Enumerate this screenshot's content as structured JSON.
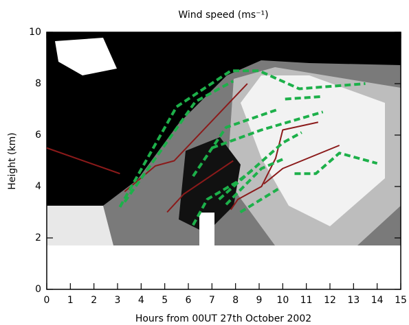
{
  "chart_data": {
    "type": "line",
    "title": "Wind speed (ms⁻¹)",
    "xlabel": "Hours from 00UT 27th October 2002",
    "ylabel": "Height (km)",
    "xlim": [
      0,
      15
    ],
    "xticks": [
      0,
      1,
      2,
      3,
      4,
      5,
      6,
      7,
      8,
      9,
      10,
      11,
      12,
      13,
      14,
      15
    ],
    "ylim": [
      0,
      10
    ],
    "yticks": [
      0,
      2,
      4,
      6,
      8,
      10
    ],
    "series": [
      {
        "color": "#8b1a1a",
        "dashed": false,
        "x": [
          0,
          3.1
        ],
        "values": [
          5.5,
          4.5
        ]
      },
      {
        "color": "#8b1a1a",
        "dashed": false,
        "x": [
          3.3,
          4.6,
          5.4,
          8.5
        ],
        "values": [
          3.8,
          4.8,
          5.0,
          8.0
        ]
      },
      {
        "color": "#8b1a1a",
        "dashed": false,
        "x": [
          5.1,
          5.8,
          7.9
        ],
        "values": [
          3.0,
          3.7,
          5.0
        ]
      },
      {
        "color": "#8b1a1a",
        "dashed": false,
        "x": [
          7.8,
          8.1,
          9.1,
          9.7,
          10.0,
          11.5
        ],
        "values": [
          3.1,
          3.5,
          4.0,
          5.1,
          6.2,
          6.5
        ]
      },
      {
        "color": "#8b1a1a",
        "dashed": false,
        "x": [
          9.2,
          10.0,
          12.4
        ],
        "values": [
          4.1,
          4.7,
          5.6
        ]
      },
      {
        "color": "#1db04a",
        "dashed": true,
        "x": [
          3.1,
          5.5,
          7.8,
          9.0,
          10.7,
          13.5
        ],
        "values": [
          3.2,
          7.1,
          8.5,
          8.5,
          7.8,
          8.0
        ]
      },
      {
        "color": "#1db04a",
        "dashed": true,
        "x": [
          3.3,
          6.3,
          7.9
        ],
        "values": [
          3.4,
          7.3,
          8.1
        ]
      },
      {
        "color": "#1db04a",
        "dashed": true,
        "x": [
          10.1,
          11.7
        ],
        "values": [
          7.4,
          7.5
        ]
      },
      {
        "color": "#1db04a",
        "dashed": true,
        "x": [
          6.2,
          7.6,
          9.8
        ],
        "values": [
          4.4,
          6.3,
          7.0
        ]
      },
      {
        "color": "#1db04a",
        "dashed": true,
        "x": [
          7.0,
          9.1,
          11.7
        ],
        "values": [
          5.5,
          6.2,
          6.9
        ]
      },
      {
        "color": "#1db04a",
        "dashed": true,
        "x": [
          6.2,
          6.8,
          8.1,
          8.8
        ],
        "values": [
          2.5,
          3.5,
          4.2,
          4.7
        ]
      },
      {
        "color": "#1db04a",
        "dashed": true,
        "x": [
          7.3,
          10.0,
          10.8
        ],
        "values": [
          3.5,
          5.7,
          6.1
        ]
      },
      {
        "color": "#1db04a",
        "dashed": true,
        "x": [
          7.6,
          9.1,
          10.1
        ],
        "values": [
          3.3,
          4.7,
          5.1
        ]
      },
      {
        "color": "#1db04a",
        "dashed": true,
        "x": [
          8.2,
          9.8
        ],
        "values": [
          3.0,
          3.9
        ]
      },
      {
        "color": "#1db04a",
        "dashed": true,
        "x": [
          10.5,
          11.4,
          12.4,
          13.2,
          14.0
        ],
        "values": [
          4.5,
          4.5,
          5.3,
          5.1,
          4.9
        ]
      }
    ]
  }
}
